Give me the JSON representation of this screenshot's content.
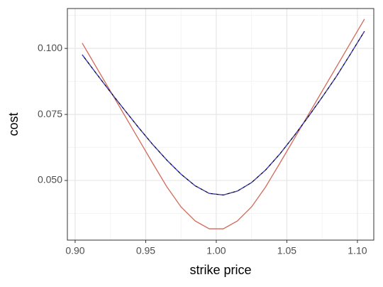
{
  "chart_data": {
    "type": "line",
    "x_label": "strike price",
    "y_label": "cost",
    "x": [
      0.905,
      0.915,
      0.925,
      0.935,
      0.945,
      0.955,
      0.965,
      0.975,
      0.985,
      0.995,
      1.005,
      1.015,
      1.025,
      1.035,
      1.045,
      1.055,
      1.065,
      1.075,
      1.085,
      1.095,
      1.105
    ],
    "series": [
      {
        "color": "#d2695a",
        "dash": false,
        "values": [
          0.102,
          0.0929,
          0.0838,
          0.0747,
          0.0656,
          0.0565,
          0.0476,
          0.04,
          0.0347,
          0.0317,
          0.0317,
          0.0347,
          0.04,
          0.0476,
          0.0565,
          0.0656,
          0.0747,
          0.0838,
          0.0929,
          0.102,
          0.1111
        ]
      },
      {
        "color": "#000000",
        "dash": false,
        "values": [
          0.0976,
          0.0905,
          0.0835,
          0.0767,
          0.07,
          0.0636,
          0.0577,
          0.0524,
          0.048,
          0.0451,
          0.0445,
          0.046,
          0.0492,
          0.054,
          0.06,
          0.0668,
          0.074,
          0.0815,
          0.0893,
          0.0978,
          0.1065
        ]
      },
      {
        "color": "#4a4ad0",
        "dash": true,
        "values": [
          0.0976,
          0.0905,
          0.0835,
          0.0767,
          0.07,
          0.0636,
          0.0577,
          0.0524,
          0.048,
          0.0451,
          0.0445,
          0.046,
          0.0492,
          0.054,
          0.06,
          0.0668,
          0.074,
          0.0815,
          0.0893,
          0.0978,
          0.1065
        ]
      }
    ],
    "xlim": [
      0.8945,
      1.1116
    ],
    "ylim": [
      0.02742,
      0.1151
    ],
    "xticks": [
      {
        "value": 0.9,
        "label": "0.90"
      },
      0.95,
      {
        "value": 1.0,
        "label": "1.00"
      },
      1.05,
      {
        "value": 1.1,
        "label": "1.10"
      }
    ],
    "yticks": [
      {
        "value": 0.05,
        "label": "0.050"
      },
      0.075,
      {
        "value": 0.1,
        "label": "0.100"
      }
    ],
    "x_minor_grid": [
      0.925,
      0.975,
      1.025,
      1.075
    ],
    "y_minor_grid": [
      0.0375,
      0.0625,
      0.0875,
      0.1125
    ],
    "grid": true
  }
}
